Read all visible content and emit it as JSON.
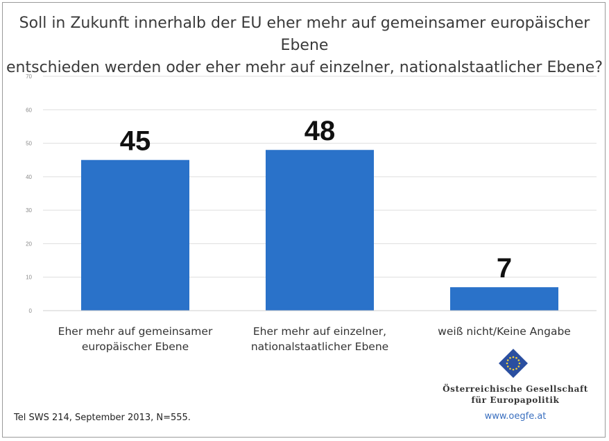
{
  "title_lines": [
    "Soll in Zukunft innerhalb der EU eher mehr auf gemeinsamer europäischer Ebene",
    "entschieden werden oder eher mehr auf einzelner, nationalstaatlicher Ebene?"
  ],
  "chart_data": {
    "type": "bar",
    "categories": [
      [
        "Eher mehr auf gemeinsamer",
        "europäischer Ebene"
      ],
      [
        "Eher mehr auf einzelner,",
        "nationalstaatlicher Ebene"
      ],
      [
        "weiß nicht/Keine Angabe"
      ]
    ],
    "values": [
      45,
      48,
      7
    ],
    "data_labels": [
      "45",
      "48",
      "7"
    ],
    "ylim": [
      0,
      70
    ],
    "yticks": [
      0,
      10,
      20,
      30,
      40,
      50,
      60,
      70
    ],
    "grid": true,
    "bar_color": "#2a72c9"
  },
  "source": "Tel SWS 214, September 2013, N=555.",
  "org": {
    "name_lines": [
      "Österreichische Gesellschaft",
      "für Europapolitik"
    ],
    "url": "www.oegfe.at",
    "logo_color": "#2a4fa0"
  }
}
